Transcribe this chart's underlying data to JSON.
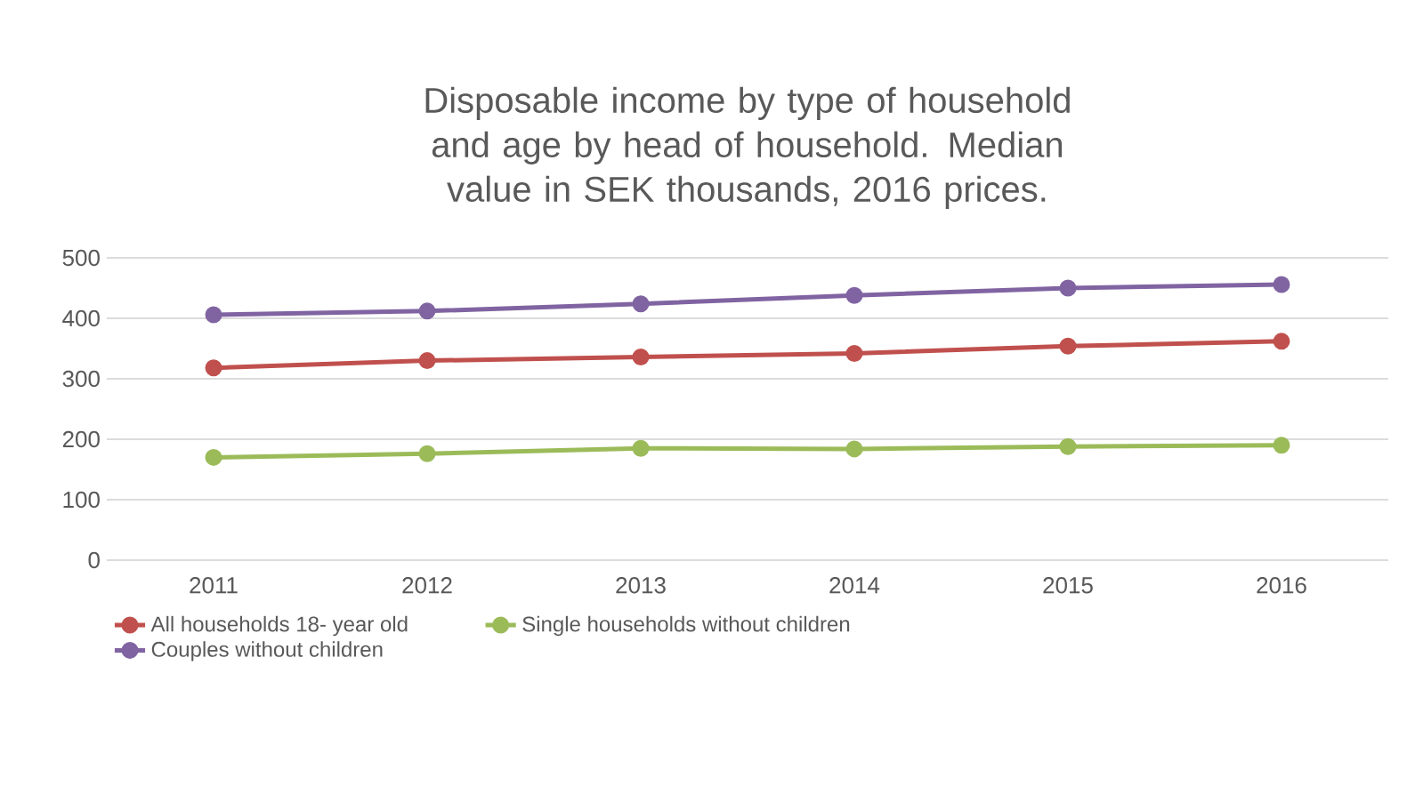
{
  "chart_data": {
    "type": "line",
    "title": "Disposable income by type of household and age by head of household. Median value in SEK thousands, 2016 prices.",
    "categories": [
      "2011",
      "2012",
      "2013",
      "2014",
      "2015",
      "2016"
    ],
    "series": [
      {
        "name": "All households 18-  year old",
        "color": "#c0504d",
        "values": [
          318,
          330,
          336,
          342,
          354,
          362
        ]
      },
      {
        "name": "Single households without children",
        "color": "#9bbb59",
        "values": [
          170,
          176,
          185,
          184,
          188,
          190
        ]
      },
      {
        "name": "Couples without children",
        "color": "#8064a2",
        "values": [
          406,
          412,
          424,
          438,
          450,
          456
        ]
      }
    ],
    "ylim": [
      0,
      500
    ],
    "yticks": [
      0,
      100,
      200,
      300,
      400,
      500
    ],
    "grid": "y",
    "legend": "bottom",
    "marker": "circle",
    "line_style": "solid"
  }
}
